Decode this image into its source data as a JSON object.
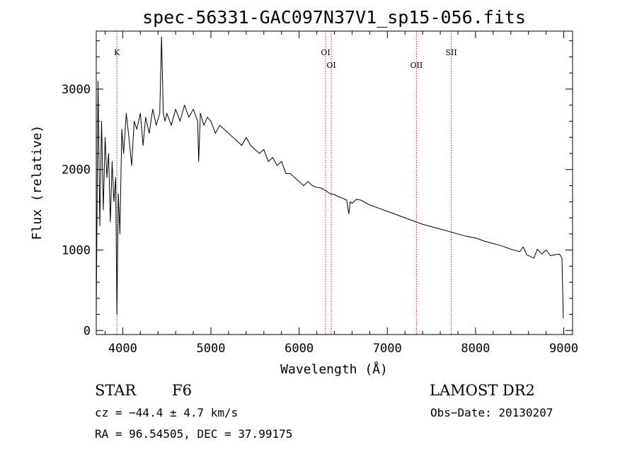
{
  "chart_data": {
    "type": "line",
    "title": "spec-56331-GAC097N37V1_sp15-056.fits",
    "xlabel": "Wavelength (Å)",
    "ylabel": "Flux (relative)",
    "xlim": [
      3700,
      9100
    ],
    "ylim": [
      -50,
      3720
    ],
    "xticks": [
      4000,
      5000,
      6000,
      7000,
      8000,
      9000
    ],
    "yticks": [
      0,
      1000,
      2000,
      3000
    ],
    "lines": [
      {
        "label": "K",
        "wavelength": 3934,
        "level": "upper"
      },
      {
        "label": "OI",
        "wavelength": 6300,
        "level": "upper"
      },
      {
        "label": "OI",
        "wavelength": 6364,
        "level": "lower"
      },
      {
        "label": "OII",
        "wavelength": 7330,
        "level": "lower"
      },
      {
        "label": "SII",
        "wavelength": 7725,
        "level": "upper"
      }
    ],
    "series": [
      {
        "name": "flux",
        "x": [
          3700,
          3720,
          3740,
          3760,
          3780,
          3800,
          3820,
          3840,
          3860,
          3880,
          3900,
          3920,
          3934,
          3950,
          3968,
          3990,
          4010,
          4040,
          4070,
          4101,
          4130,
          4160,
          4200,
          4230,
          4260,
          4300,
          4340,
          4380,
          4420,
          4440,
          4460,
          4480,
          4500,
          4550,
          4600,
          4650,
          4700,
          4750,
          4800,
          4850,
          4861,
          4880,
          4920,
          4960,
          5000,
          5050,
          5100,
          5150,
          5200,
          5250,
          5300,
          5350,
          5400,
          5450,
          5500,
          5550,
          5600,
          5650,
          5700,
          5750,
          5800,
          5850,
          5900,
          5950,
          6000,
          6050,
          6100,
          6150,
          6200,
          6250,
          6300,
          6350,
          6400,
          6450,
          6500,
          6540,
          6563,
          6580,
          6600,
          6650,
          6700,
          6800,
          6900,
          7000,
          7100,
          7200,
          7300,
          7400,
          7500,
          7600,
          7700,
          7800,
          7900,
          8000,
          8100,
          8200,
          8300,
          8400,
          8500,
          8540,
          8580,
          8662,
          8700,
          8750,
          8800,
          8850,
          8900,
          8950,
          8980,
          8995
        ],
        "y": [
          200,
          3100,
          1300,
          2600,
          1500,
          2400,
          1900,
          2200,
          1350,
          2100,
          1600,
          1900,
          200,
          1700,
          1200,
          2500,
          2200,
          2700,
          2400,
          2050,
          2600,
          2500,
          2700,
          2300,
          2650,
          2450,
          2750,
          2550,
          2700,
          3650,
          2700,
          2600,
          2700,
          2550,
          2750,
          2600,
          2800,
          2650,
          2750,
          2600,
          2100,
          2700,
          2550,
          2650,
          2600,
          2450,
          2550,
          2500,
          2450,
          2400,
          2350,
          2300,
          2400,
          2300,
          2250,
          2200,
          2250,
          2100,
          2150,
          2050,
          2100,
          1950,
          1950,
          1900,
          1850,
          1800,
          1850,
          1800,
          1780,
          1770,
          1740,
          1700,
          1690,
          1660,
          1640,
          1620,
          1450,
          1600,
          1580,
          1630,
          1620,
          1560,
          1520,
          1480,
          1440,
          1400,
          1360,
          1320,
          1290,
          1260,
          1230,
          1200,
          1170,
          1150,
          1110,
          1080,
          1050,
          1010,
          980,
          1040,
          940,
          900,
          1010,
          950,
          1000,
          930,
          940,
          950,
          900,
          150
        ]
      }
    ]
  },
  "info": {
    "object_class": "STAR",
    "subclass": "F6",
    "survey": "LAMOST DR2",
    "cz": "cz = −44.4 ± 4.7 km/s",
    "obs_date": "Obs−Date: 20130207",
    "coords": "RA =  96.54505, DEC =  37.99175"
  }
}
